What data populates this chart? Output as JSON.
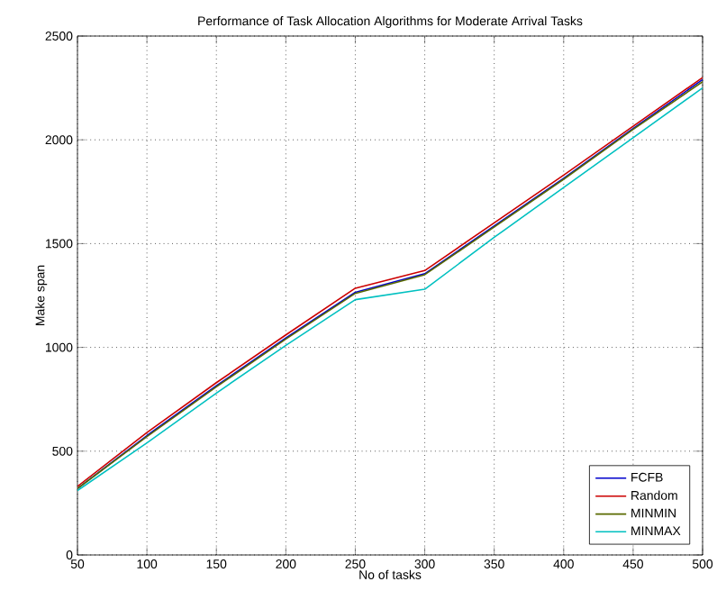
{
  "chart_data": {
    "type": "line",
    "title": "Performance of Task Allocation Algorithms for Moderate Arrival Tasks",
    "xlabel": "No of tasks",
    "ylabel": "Make span",
    "x": [
      50,
      100,
      150,
      200,
      250,
      300,
      350,
      400,
      450,
      500
    ],
    "series": [
      {
        "name": "FCFB",
        "color": "#0000cc",
        "values": [
          320,
          575,
          815,
          1045,
          1265,
          1355,
          1585,
          1815,
          2055,
          2290
        ]
      },
      {
        "name": "Random",
        "color": "#cc0000",
        "values": [
          330,
          590,
          830,
          1060,
          1285,
          1370,
          1600,
          1830,
          2065,
          2300
        ]
      },
      {
        "name": "MINMIN",
        "color": "#5a6a00",
        "values": [
          320,
          570,
          810,
          1040,
          1260,
          1350,
          1580,
          1810,
          2050,
          2280
        ]
      },
      {
        "name": "MINMAX",
        "color": "#00c0c0",
        "values": [
          310,
          540,
          780,
          1010,
          1230,
          1280,
          1530,
          1770,
          2010,
          2250
        ]
      }
    ],
    "xlim": [
      50,
      500
    ],
    "xticks": [
      50,
      100,
      150,
      200,
      250,
      300,
      350,
      400,
      450,
      500
    ],
    "ylim": [
      0,
      2500
    ],
    "yticks": [
      0,
      500,
      1000,
      1500,
      2000,
      2500
    ],
    "grid": true,
    "legend": "bottom right",
    "marker": "none",
    "line_style": "solid"
  }
}
